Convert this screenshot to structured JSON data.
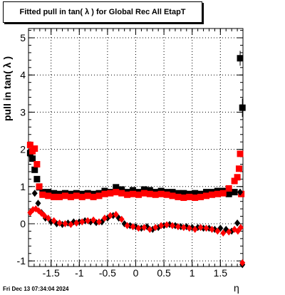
{
  "chart_data": {
    "type": "scatter",
    "title": "Fitted pull in tan( λ ) for Global Rec All EtapT",
    "xlabel": "η",
    "ylabel": "pull in tan( λ )",
    "xlim": [
      -1.9,
      1.9
    ],
    "ylim": [
      -1.15,
      5.25
    ],
    "xticks": [
      "-1.5",
      "-1",
      "-0.5",
      "0",
      "0.5",
      "1",
      "1.5"
    ],
    "yticks": [
      "-1",
      "0",
      "1",
      "2",
      "3",
      "4",
      "5"
    ],
    "grid": true,
    "series": [
      {
        "marker": "square",
        "color": "#000000",
        "x": [
          -1.87,
          -1.83,
          -1.79,
          -1.75,
          -1.71,
          -1.65,
          -1.55,
          -1.45,
          -1.35,
          -1.25,
          -1.15,
          -1.05,
          -0.95,
          -0.85,
          -0.75,
          -0.65,
          -0.55,
          -0.45,
          -0.35,
          -0.25,
          -0.15,
          -0.05,
          0.05,
          0.15,
          0.25,
          0.35,
          0.45,
          0.55,
          0.65,
          0.75,
          0.85,
          0.95,
          1.05,
          1.15,
          1.25,
          1.35,
          1.45,
          1.55,
          1.65,
          1.75,
          1.85,
          1.89
        ],
        "y": [
          1.9,
          1.75,
          1.45,
          1.2,
          0.98,
          0.85,
          0.85,
          0.82,
          0.8,
          0.82,
          0.8,
          0.82,
          0.8,
          0.82,
          0.8,
          0.82,
          0.88,
          0.85,
          0.98,
          0.92,
          0.85,
          0.9,
          0.85,
          0.92,
          0.9,
          0.85,
          0.88,
          0.85,
          0.85,
          0.82,
          0.82,
          0.8,
          0.82,
          0.8,
          0.85,
          0.85,
          0.88,
          0.88,
          0.8,
          0.85,
          4.45,
          3.12
        ]
      },
      {
        "marker": "square",
        "color": "#ff0000",
        "x": [
          -1.87,
          -1.83,
          -1.79,
          -1.75,
          -1.71,
          -1.65,
          -1.55,
          -1.45,
          -1.35,
          -1.25,
          -1.15,
          -1.05,
          -0.95,
          -0.85,
          -0.75,
          -0.65,
          -0.55,
          -0.45,
          -0.35,
          -0.25,
          -0.15,
          -0.05,
          0.05,
          0.15,
          0.25,
          0.35,
          0.45,
          0.55,
          0.65,
          0.75,
          0.85,
          0.95,
          1.05,
          1.15,
          1.25,
          1.35,
          1.45,
          1.55,
          1.65,
          1.75,
          1.8,
          1.83,
          1.85,
          1.87
        ],
        "y": [
          2.12,
          1.95,
          2.02,
          1.6,
          1.0,
          0.78,
          0.75,
          0.72,
          0.72,
          0.75,
          0.72,
          0.75,
          0.72,
          0.75,
          0.72,
          0.75,
          0.8,
          0.82,
          0.85,
          0.82,
          0.78,
          0.8,
          0.78,
          0.82,
          0.8,
          0.78,
          0.8,
          0.78,
          0.75,
          0.72,
          0.7,
          0.72,
          0.7,
          0.72,
          0.75,
          0.78,
          0.8,
          0.82,
          0.95,
          1.15,
          1.25,
          1.48,
          1.88,
          0.8
        ]
      },
      {
        "marker": "diamond",
        "color": "#000000",
        "x": [
          -1.79,
          -1.73,
          -1.67,
          -1.6,
          -1.5,
          -1.4,
          -1.3,
          -1.2,
          -1.1,
          -1.0,
          -0.9,
          -0.8,
          -0.7,
          -0.6,
          -0.5,
          -0.4,
          -0.3,
          -0.2,
          -0.1,
          0.0,
          0.1,
          0.2,
          0.3,
          0.4,
          0.5,
          0.6,
          0.7,
          0.8,
          0.9,
          1.0,
          1.1,
          1.2,
          1.3,
          1.4,
          1.5,
          1.6,
          1.7,
          1.8,
          1.85,
          1.89
        ],
        "y": [
          0.82,
          0.55,
          0.3,
          0.15,
          0.05,
          0.0,
          -0.02,
          0.02,
          0.05,
          0.05,
          0.08,
          0.05,
          0.03,
          0.05,
          0.15,
          0.22,
          0.15,
          0.0,
          -0.05,
          -0.08,
          -0.12,
          -0.08,
          -0.15,
          -0.1,
          -0.05,
          -0.02,
          -0.05,
          -0.08,
          -0.08,
          -0.1,
          -0.1,
          -0.12,
          -0.12,
          -0.15,
          -0.12,
          -0.15,
          -0.2,
          0.02,
          0.85,
          -1.1
        ]
      },
      {
        "marker": "diamond",
        "color": "#ff0000",
        "x": [
          -1.87,
          -1.82,
          -1.77,
          -1.72,
          -1.67,
          -1.62,
          -1.55,
          -1.45,
          -1.35,
          -1.25,
          -1.15,
          -1.05,
          -0.95,
          -0.85,
          -0.75,
          -0.65,
          -0.55,
          -0.45,
          -0.35,
          -0.25,
          -0.15,
          -0.05,
          0.05,
          0.15,
          0.25,
          0.35,
          0.45,
          0.55,
          0.65,
          0.75,
          0.85,
          0.95,
          1.05,
          1.15,
          1.25,
          1.35,
          1.45,
          1.55,
          1.65,
          1.75,
          1.81,
          1.86,
          1.89
        ],
        "y": [
          0.3,
          0.38,
          0.4,
          0.35,
          0.28,
          0.22,
          0.15,
          0.08,
          0.02,
          0.0,
          -0.02,
          0.02,
          0.05,
          0.08,
          0.1,
          0.05,
          0.15,
          0.22,
          0.25,
          0.12,
          -0.05,
          -0.08,
          -0.12,
          -0.1,
          -0.15,
          -0.1,
          -0.05,
          -0.03,
          -0.05,
          -0.08,
          -0.1,
          -0.12,
          -0.15,
          -0.1,
          -0.12,
          -0.15,
          -0.2,
          -0.25,
          -0.22,
          -0.15,
          -0.2,
          -0.1,
          -1.05
        ]
      }
    ]
  },
  "timestamp": "Fri Dec 13 07:34:04 2024"
}
